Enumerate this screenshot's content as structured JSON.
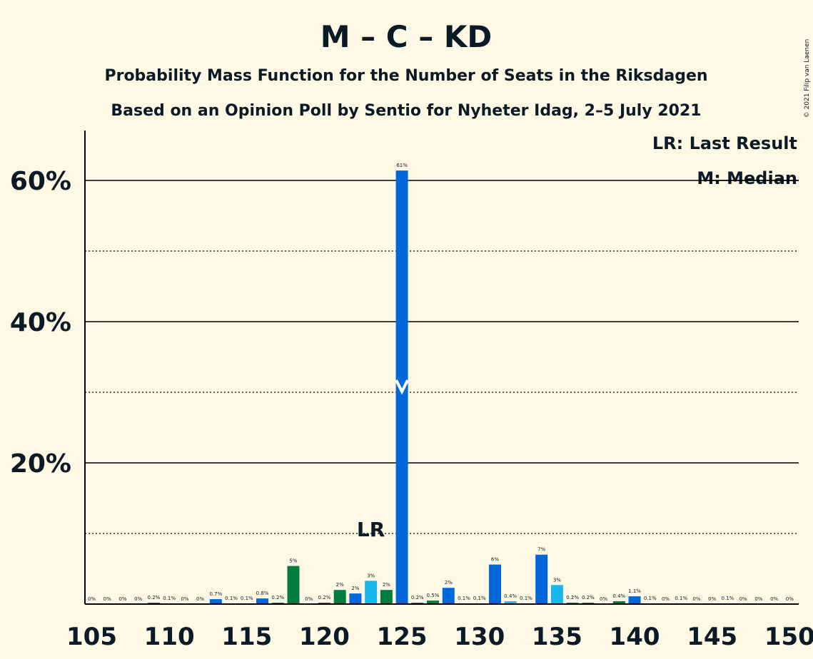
{
  "chart_data": {
    "type": "bar",
    "title": "M – C – KD",
    "subtitle": "Probability Mass Function for the Number of Seats in the Riksdagen",
    "subtitle2": "Based on an Opinion Poll by Sentio for Nyheter Idag, 2–5 July 2021",
    "copyright": "© 2021 Filip van Laenen",
    "legend": {
      "placement": "top-right",
      "items": [
        "LR: Last Result",
        "M: Median"
      ]
    },
    "last_result_label": "LR",
    "last_result_seat": 123,
    "median_seat": 125,
    "xlim": [
      105,
      150
    ],
    "ylim": [
      0,
      67
    ],
    "x_ticks": [
      105,
      110,
      115,
      120,
      125,
      130,
      135,
      140,
      145,
      150
    ],
    "x_tick_labels": [
      "105",
      "110",
      "115",
      "120",
      "125",
      "130",
      "135",
      "140",
      "145",
      "150"
    ],
    "y_ticks_solid": [
      20,
      40,
      60
    ],
    "y_tick_labels": [
      "20%",
      "40%",
      "60%"
    ],
    "y_ticks_dotted": [
      10,
      30,
      50
    ],
    "colors": {
      "blue": "#0068d9",
      "green": "#007d3a",
      "light_blue": "#1ab7ea",
      "axis": "#000000",
      "text": "#0a1a26",
      "background": "#fff8e5"
    },
    "bars": [
      {
        "seat": 105,
        "value": 0,
        "label": "0%",
        "color": "blue"
      },
      {
        "seat": 106,
        "value": 0,
        "label": "0%",
        "color": "blue"
      },
      {
        "seat": 107,
        "value": 0,
        "label": "0%",
        "color": "blue"
      },
      {
        "seat": 108,
        "value": 0,
        "label": "0%",
        "color": "blue"
      },
      {
        "seat": 109,
        "value": 0.2,
        "label": "0.2%",
        "color": "blue"
      },
      {
        "seat": 110,
        "value": 0.1,
        "label": "0.1%",
        "color": "blue"
      },
      {
        "seat": 111,
        "value": 0,
        "label": "0%",
        "color": "blue"
      },
      {
        "seat": 112,
        "value": 0,
        "label": "0%",
        "color": "blue"
      },
      {
        "seat": 113,
        "value": 0.7,
        "label": "0.7%",
        "color": "blue"
      },
      {
        "seat": 114,
        "value": 0.1,
        "label": "0.1%",
        "color": "blue"
      },
      {
        "seat": 115,
        "value": 0.1,
        "label": "0.1%",
        "color": "blue"
      },
      {
        "seat": 116,
        "value": 0.8,
        "label": "0.8%",
        "color": "blue"
      },
      {
        "seat": 117,
        "value": 0.2,
        "label": "0.2%",
        "color": "green"
      },
      {
        "seat": 118,
        "value": 5.4,
        "label": "5%",
        "color": "green"
      },
      {
        "seat": 119,
        "value": 0,
        "label": "0%",
        "color": "blue"
      },
      {
        "seat": 120,
        "value": 0.2,
        "label": "0.2%",
        "color": "blue"
      },
      {
        "seat": 121,
        "value": 2.0,
        "label": "2%",
        "color": "green"
      },
      {
        "seat": 122,
        "value": 1.5,
        "label": "2%",
        "color": "blue"
      },
      {
        "seat": 123,
        "value": 3.3,
        "label": "3%",
        "color": "light_blue"
      },
      {
        "seat": 124,
        "value": 2.0,
        "label": "2%",
        "color": "green"
      },
      {
        "seat": 125,
        "value": 61.4,
        "label": "61%",
        "color": "blue"
      },
      {
        "seat": 126,
        "value": 0.2,
        "label": "0.2%",
        "color": "blue"
      },
      {
        "seat": 127,
        "value": 0.5,
        "label": "0.5%",
        "color": "green"
      },
      {
        "seat": 128,
        "value": 2.3,
        "label": "2%",
        "color": "blue"
      },
      {
        "seat": 129,
        "value": 0.1,
        "label": "0.1%",
        "color": "blue"
      },
      {
        "seat": 130,
        "value": 0.1,
        "label": "0.1%",
        "color": "blue"
      },
      {
        "seat": 131,
        "value": 5.6,
        "label": "6%",
        "color": "blue"
      },
      {
        "seat": 132,
        "value": 0.4,
        "label": "0.4%",
        "color": "light_blue"
      },
      {
        "seat": 133,
        "value": 0.1,
        "label": "0.1%",
        "color": "blue"
      },
      {
        "seat": 134,
        "value": 7.0,
        "label": "7%",
        "color": "blue"
      },
      {
        "seat": 135,
        "value": 2.7,
        "label": "3%",
        "color": "light_blue"
      },
      {
        "seat": 136,
        "value": 0.2,
        "label": "0.2%",
        "color": "blue"
      },
      {
        "seat": 137,
        "value": 0.2,
        "label": "0.2%",
        "color": "blue"
      },
      {
        "seat": 138,
        "value": 0,
        "label": "0%",
        "color": "blue"
      },
      {
        "seat": 139,
        "value": 0.4,
        "label": "0.4%",
        "color": "green"
      },
      {
        "seat": 140,
        "value": 1.1,
        "label": "1.1%",
        "color": "blue"
      },
      {
        "seat": 141,
        "value": 0.1,
        "label": "0.1%",
        "color": "blue"
      },
      {
        "seat": 142,
        "value": 0,
        "label": "0%",
        "color": "blue"
      },
      {
        "seat": 143,
        "value": 0.1,
        "label": "0.1%",
        "color": "blue"
      },
      {
        "seat": 144,
        "value": 0,
        "label": "0%",
        "color": "blue"
      },
      {
        "seat": 145,
        "value": 0,
        "label": "0%",
        "color": "blue"
      },
      {
        "seat": 146,
        "value": 0.1,
        "label": "0.1%",
        "color": "blue"
      },
      {
        "seat": 147,
        "value": 0,
        "label": "0%",
        "color": "blue"
      },
      {
        "seat": 148,
        "value": 0,
        "label": "0%",
        "color": "blue"
      },
      {
        "seat": 149,
        "value": 0,
        "label": "0%",
        "color": "blue"
      },
      {
        "seat": 150,
        "value": 0,
        "label": "0%",
        "color": "blue"
      }
    ]
  }
}
